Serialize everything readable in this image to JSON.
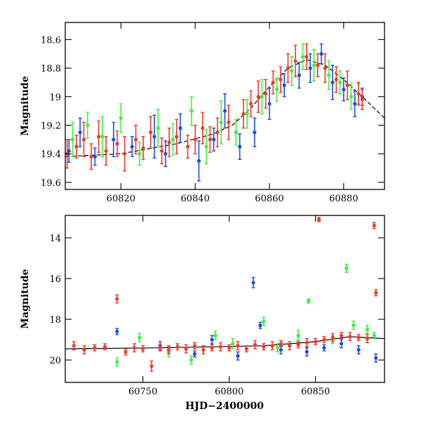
{
  "colors": {
    "blue": "#1f4fe0",
    "green": "#3ef03e",
    "red": "#f23a28",
    "axis": "#000000",
    "trend": "#000000"
  },
  "chart_data": [
    {
      "type": "scatter",
      "title": "",
      "xlabel": "",
      "ylabel": "Magnitude",
      "xlim": [
        60805,
        60891
      ],
      "ylim": [
        19.65,
        18.48
      ],
      "y_inverted": true,
      "x_ticks": [
        60820,
        60840,
        60860,
        60880
      ],
      "y_ticks": [
        18.6,
        18.8,
        19,
        19.2,
        19.4,
        19.6
      ],
      "trend": {
        "x": [
          60805,
          60820,
          60835,
          60845,
          60850,
          60855,
          60860,
          60865,
          60870,
          60875,
          60880,
          60885,
          60891
        ],
        "y": [
          19.42,
          19.4,
          19.33,
          19.26,
          19.2,
          19.08,
          18.93,
          18.8,
          18.74,
          18.78,
          18.88,
          19.0,
          19.15
        ]
      },
      "series": [
        {
          "color": "blue",
          "x": [
            60806,
            60809,
            60813,
            60818,
            60823,
            60829,
            60832,
            60836,
            60841,
            60845,
            60848,
            60852,
            60856,
            60860,
            60864,
            60868,
            60871,
            60874,
            60877,
            60880,
            60883,
            60885
          ],
          "y": [
            19.38,
            19.25,
            19.42,
            19.3,
            19.35,
            19.28,
            19.4,
            19.22,
            19.45,
            19.3,
            19.1,
            19.35,
            19.25,
            19.05,
            18.92,
            18.85,
            18.8,
            18.7,
            18.9,
            18.95,
            19.05,
            19.0
          ],
          "err": [
            0.08,
            0.1,
            0.06,
            0.12,
            0.07,
            0.15,
            0.09,
            0.1,
            0.14,
            0.08,
            0.12,
            0.09,
            0.1,
            0.11,
            0.08,
            0.09,
            0.1,
            0.07,
            0.12,
            0.08,
            0.09,
            0.06
          ]
        },
        {
          "color": "green",
          "x": [
            60807,
            60811,
            60815,
            60820,
            60825,
            60830,
            60834,
            60839,
            60843,
            60847,
            60851,
            60854,
            60858,
            60862,
            60866,
            60869,
            60872,
            60876,
            60879,
            60882,
            60884
          ],
          "y": [
            19.3,
            19.2,
            19.28,
            19.15,
            19.4,
            19.22,
            19.3,
            19.1,
            19.35,
            19.18,
            19.25,
            19.12,
            19.0,
            18.95,
            18.82,
            18.72,
            18.78,
            18.85,
            18.9,
            19.0,
            18.98
          ],
          "err": [
            0.12,
            0.09,
            0.14,
            0.1,
            0.08,
            0.13,
            0.11,
            0.1,
            0.12,
            0.15,
            0.09,
            0.1,
            0.12,
            0.08,
            0.1,
            0.09,
            0.11,
            0.1,
            0.08,
            0.09,
            0.07
          ]
        },
        {
          "color": "red",
          "x": [
            60805.5,
            60808,
            60810,
            60812,
            60814,
            60816,
            60819,
            60821,
            60824,
            60826,
            60828,
            60831,
            60833,
            60835,
            60838,
            60840,
            60842,
            60844,
            60846,
            60849,
            60853,
            60855,
            60857,
            60859,
            60861,
            60863,
            60865,
            60867,
            60870,
            60873,
            60875,
            60878,
            60881,
            60884,
            60885
          ],
          "y": [
            19.4,
            19.35,
            19.3,
            19.42,
            19.28,
            19.38,
            19.33,
            19.4,
            19.3,
            19.36,
            19.25,
            19.38,
            19.32,
            19.28,
            19.35,
            19.3,
            19.22,
            19.3,
            19.25,
            19.18,
            19.12,
            19.05,
            19.0,
            18.98,
            18.9,
            18.88,
            18.8,
            18.75,
            18.72,
            18.78,
            18.8,
            18.88,
            18.92,
            18.98,
            19.02
          ],
          "err": [
            0.1,
            0.08,
            0.12,
            0.09,
            0.11,
            0.1,
            0.09,
            0.12,
            0.1,
            0.08,
            0.11,
            0.09,
            0.1,
            0.12,
            0.08,
            0.1,
            0.11,
            0.09,
            0.1,
            0.12,
            0.1,
            0.09,
            0.11,
            0.1,
            0.08,
            0.09,
            0.1,
            0.11,
            0.09,
            0.08,
            0.1,
            0.09,
            0.1,
            0.08,
            0.07
          ]
        }
      ]
    },
    {
      "type": "scatter",
      "title": "",
      "xlabel": "HJD−2400000",
      "ylabel": "Magnitude",
      "xlim": [
        60705,
        60890
      ],
      "ylim": [
        21.1,
        12.9
      ],
      "y_inverted": true,
      "x_ticks": [
        60750,
        60800,
        60850
      ],
      "y_ticks": [
        14,
        16,
        18,
        20
      ],
      "trend": {
        "x": [
          60705,
          60760,
          60820,
          60850,
          60870,
          60890
        ],
        "y": [
          19.45,
          19.4,
          19.3,
          19.1,
          18.85,
          18.95
        ]
      },
      "series": [
        {
          "color": "blue",
          "x": [
            60735,
            60760,
            60780,
            60790,
            60805,
            60814,
            60818,
            60830,
            60845,
            60855,
            60865,
            60875,
            60885
          ],
          "y": [
            18.6,
            19.3,
            19.7,
            19.0,
            19.8,
            16.2,
            18.3,
            19.5,
            19.6,
            19.4,
            19.2,
            19.5,
            19.9
          ],
          "err": [
            0.15,
            0.2,
            0.15,
            0.2,
            0.2,
            0.25,
            0.15,
            0.2,
            0.2,
            0.15,
            0.2,
            0.2,
            0.2
          ]
        },
        {
          "color": "green",
          "x": [
            60735,
            60748,
            60765,
            60778,
            60792,
            60802,
            60820,
            60828,
            60840,
            60846,
            60860,
            60868,
            60872,
            60880,
            60884
          ],
          "y": [
            20.1,
            18.9,
            19.6,
            20.0,
            18.8,
            19.2,
            18.1,
            19.4,
            18.8,
            17.1,
            19.0,
            15.5,
            18.3,
            18.5,
            18.8
          ],
          "err": [
            0.2,
            0.2,
            0.25,
            0.2,
            0.2,
            0.25,
            0.2,
            0.2,
            0.25,
            0.1,
            0.2,
            0.2,
            0.2,
            0.2,
            0.15
          ]
        },
        {
          "color": "red",
          "x": [
            60710,
            60716,
            60722,
            60728,
            60735,
            60740,
            60745,
            60750,
            60755,
            60760,
            60765,
            60770,
            60775,
            60780,
            60785,
            60790,
            60795,
            60800,
            60805,
            60810,
            60815,
            60820,
            60825,
            60830,
            60835,
            60840,
            60845,
            60850,
            60852,
            60855,
            60860,
            60865,
            60870,
            60875,
            60880,
            60884,
            60885
          ],
          "y": [
            19.3,
            19.5,
            19.4,
            19.35,
            17.0,
            19.6,
            19.4,
            19.45,
            20.3,
            19.4,
            19.5,
            19.35,
            19.45,
            19.3,
            19.5,
            19.4,
            19.35,
            19.4,
            19.3,
            19.45,
            19.25,
            19.35,
            19.3,
            19.2,
            19.3,
            19.25,
            19.15,
            19.1,
            13.1,
            19.0,
            18.9,
            18.8,
            18.85,
            18.9,
            18.95,
            13.4,
            16.7
          ],
          "err": [
            0.2,
            0.2,
            0.15,
            0.15,
            0.2,
            0.15,
            0.2,
            0.15,
            0.25,
            0.15,
            0.2,
            0.15,
            0.2,
            0.15,
            0.2,
            0.15,
            0.2,
            0.15,
            0.2,
            0.15,
            0.2,
            0.15,
            0.2,
            0.15,
            0.2,
            0.15,
            0.2,
            0.15,
            0.1,
            0.15,
            0.2,
            0.15,
            0.2,
            0.15,
            0.2,
            0.15,
            0.15
          ]
        }
      ]
    }
  ]
}
